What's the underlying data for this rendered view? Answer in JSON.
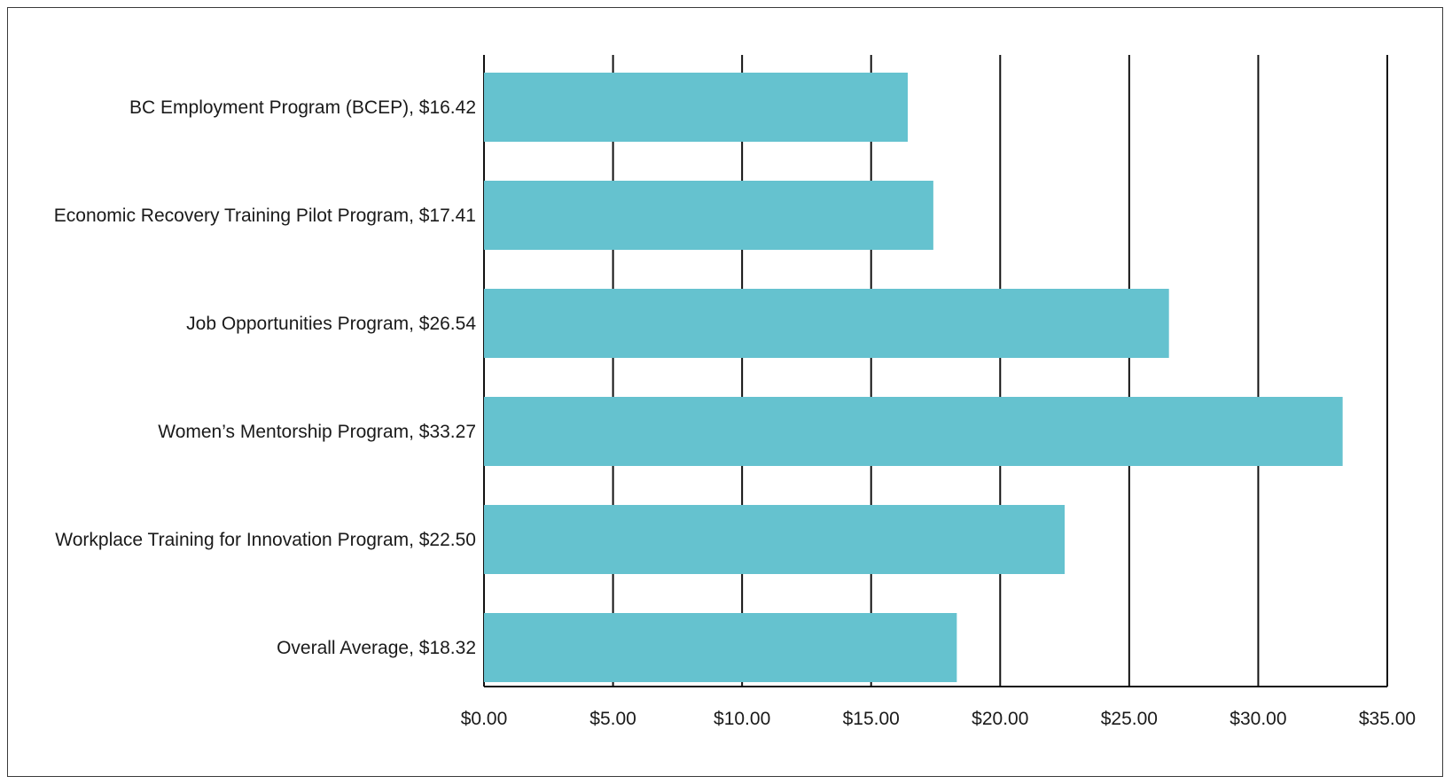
{
  "chart_data": {
    "type": "bar",
    "orientation": "horizontal",
    "categories": [
      "BC Employment Program (BCEP), $16.42",
      "Economic Recovery Training Pilot Program, $17.41",
      "Job Opportunities Program, $26.54",
      "Women’s Mentorship Program, $33.27",
      "Workplace Training for Innovation Program, $22.50",
      "Overall Average, $18.32"
    ],
    "values": [
      16.42,
      17.41,
      26.54,
      33.27,
      22.5,
      18.32
    ],
    "xlim": [
      0,
      35
    ],
    "xticks": [
      0,
      5,
      10,
      15,
      20,
      25,
      30,
      35
    ],
    "xtick_labels": [
      "$0.00",
      "$5.00",
      "$10.00",
      "$15.00",
      "$20.00",
      "$25.00",
      "$30.00",
      "$35.00"
    ],
    "title": "",
    "xlabel": "",
    "ylabel": "",
    "grid": "vertical",
    "legend": "none",
    "bar_color": "#65c2cf",
    "grid_color": "#111111"
  }
}
